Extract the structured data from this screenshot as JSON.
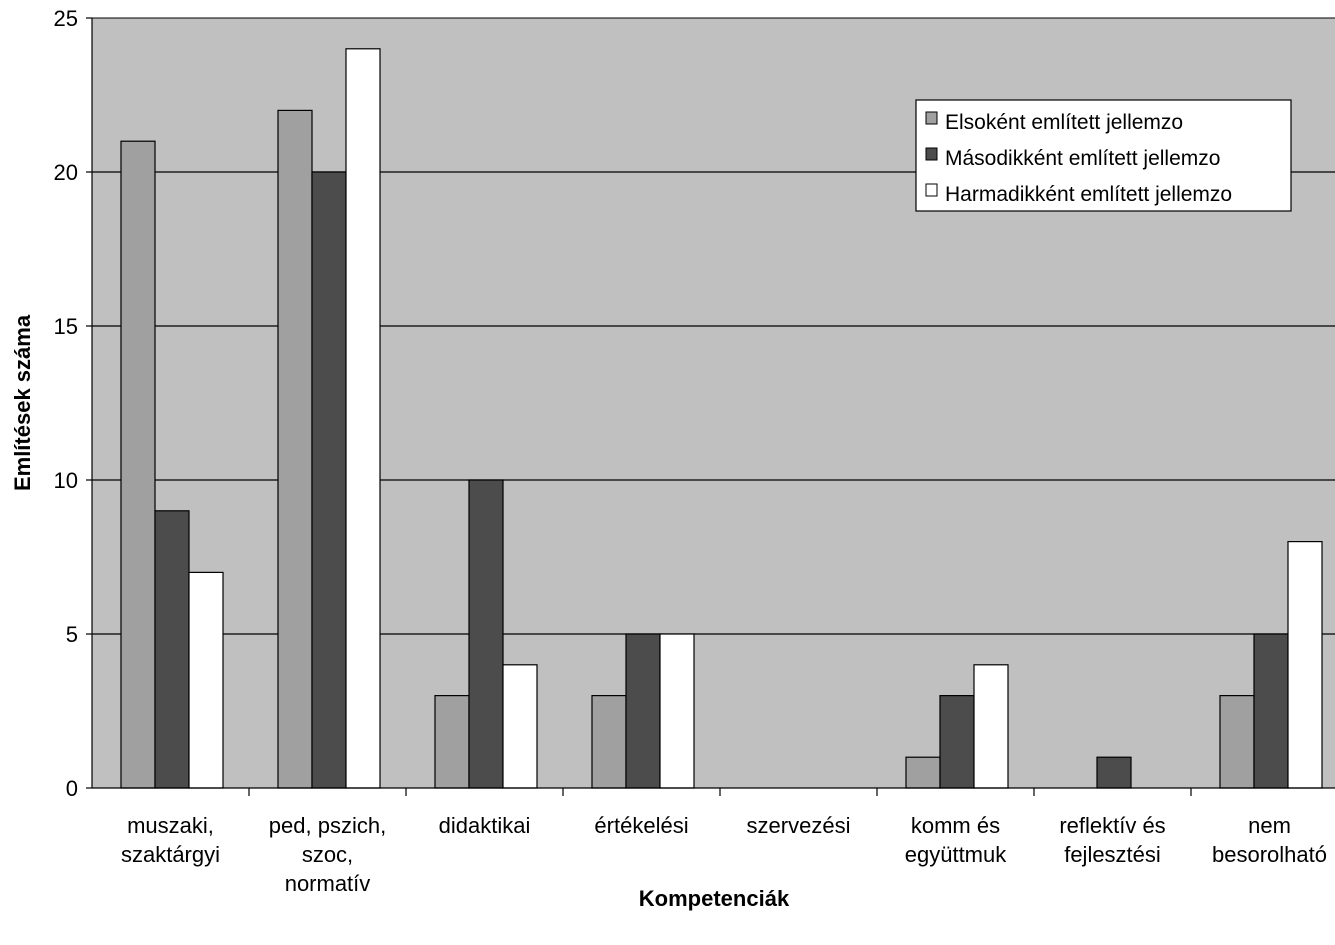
{
  "chart_data": {
    "type": "bar",
    "title": "",
    "xlabel": "Kompetenciák",
    "ylabel": "Említések száma",
    "ylim": [
      0,
      25
    ],
    "yticks": [
      "0",
      "5",
      "10",
      "15",
      "20",
      "25"
    ],
    "grid": true,
    "legend_position": "top-right",
    "categories": [
      [
        "muszaki,",
        "szaktárgyi"
      ],
      [
        "ped, pszich,",
        "szoc,",
        "normatív"
      ],
      [
        "didaktikai"
      ],
      [
        "értékelési"
      ],
      [
        "szervezési"
      ],
      [
        "komm és",
        "együttmuk"
      ],
      [
        "reflektív és",
        "fejlesztési"
      ],
      [
        "nem",
        "besorolható"
      ]
    ],
    "series": [
      {
        "name": "Elsoként említett jellemzo",
        "color": "#a0a0a0",
        "values": [
          21,
          22,
          3,
          3,
          0,
          1,
          0,
          3
        ]
      },
      {
        "name": "Másodikként említett jellemzo",
        "color": "#4c4c4c",
        "values": [
          9,
          20,
          10,
          5,
          0,
          3,
          1,
          5
        ]
      },
      {
        "name": "Harmadikként említett jellemzo",
        "color": "#ffffff",
        "values": [
          7,
          24,
          4,
          5,
          0,
          4,
          0,
          8
        ]
      }
    ],
    "plot_background": "#c0c0c0"
  }
}
